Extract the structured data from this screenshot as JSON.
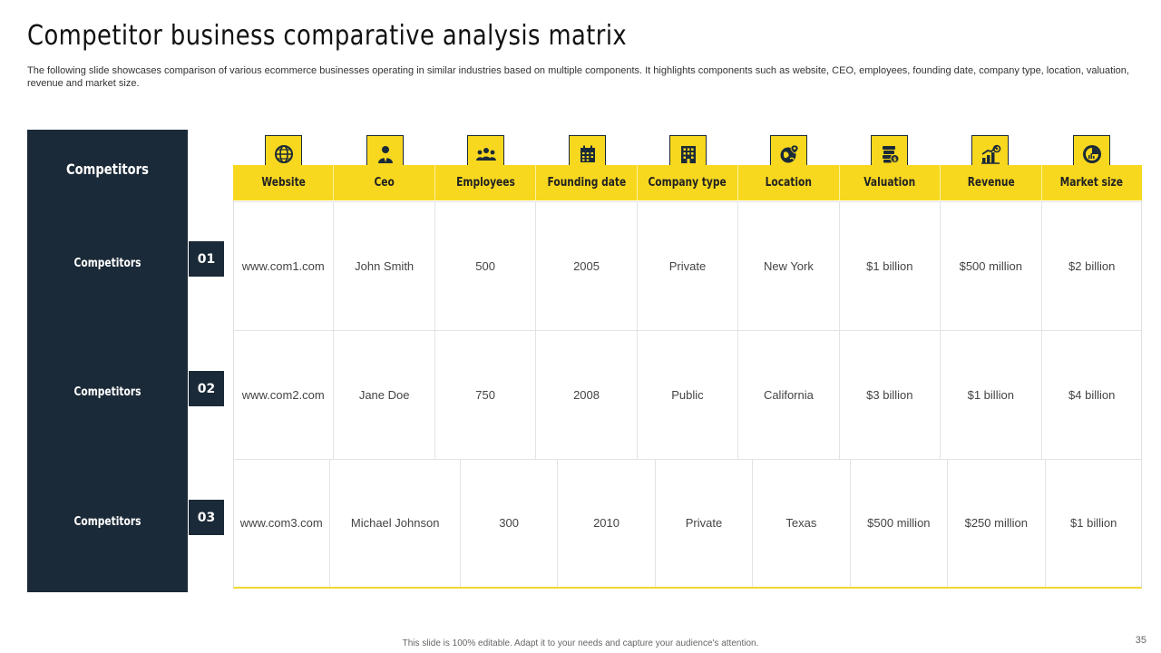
{
  "slide": {
    "title": "Competitor business comparative analysis matrix",
    "subtitle": "The following slide showcases comparison of various ecommerce businesses operating in similar industries based on multiple components. It highlights components such as website, CEO, employees, founding date, company type,  location, valuation, revenue and market size.",
    "footer": "This slide is 100% editable.  Adapt it to your needs and capture your audience's attention.",
    "page_number": "35"
  },
  "colors": {
    "accent": "#f8d81f",
    "dark": "#1b2a38"
  },
  "panel": {
    "heading": "Competitors",
    "rows": [
      {
        "label": "Competitors",
        "number": "01"
      },
      {
        "label": "Competitors",
        "number": "02"
      },
      {
        "label": "Competitors",
        "number": "03"
      }
    ]
  },
  "columns": [
    {
      "label": "Website",
      "icon": "globe-icon"
    },
    {
      "label": "Ceo",
      "icon": "person-icon"
    },
    {
      "label": "Employees",
      "icon": "team-icon"
    },
    {
      "label": "Founding date",
      "icon": "calendar-icon"
    },
    {
      "label": "Company type",
      "icon": "building-icon"
    },
    {
      "label": "Location",
      "icon": "location-globe-icon"
    },
    {
      "label": "Valuation",
      "icon": "coins-icon"
    },
    {
      "label": "Revenue",
      "icon": "growth-chart-icon"
    },
    {
      "label": "Market size",
      "icon": "pie-chart-icon"
    }
  ],
  "rows": [
    [
      "www.com1.com",
      "John Smith",
      "500",
      "2005",
      "Private",
      "New York",
      "$1 billion",
      "$500 million",
      "$2 billion"
    ],
    [
      "www.com2.com",
      "Jane Doe",
      "750",
      "2008",
      "Public",
      "California",
      "$3 billion",
      "$1 billion",
      "$4 billion"
    ],
    [
      "www.com3.com",
      "Michael Johnson",
      "300",
      "2010",
      "Private",
      "Texas",
      "$500 million",
      "$250 million",
      "$1 billion"
    ]
  ]
}
